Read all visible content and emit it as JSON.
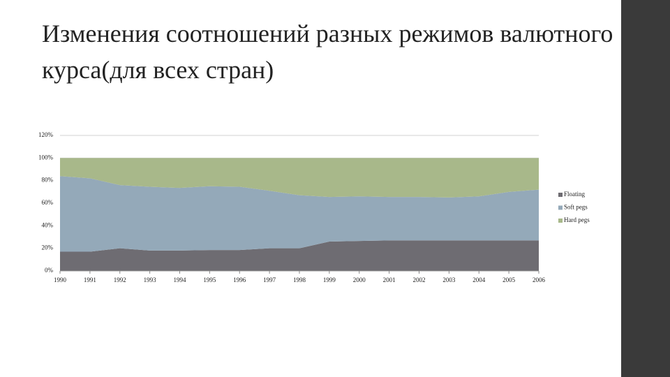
{
  "chart_data": {
    "type": "stacked_area",
    "title": "Изменения соотношений разных режимов валютного курса(для всех стран)",
    "categories": [
      "1990",
      "1991",
      "1992",
      "1993",
      "1994",
      "1995",
      "1996",
      "1997",
      "1998",
      "1999",
      "2000",
      "2001",
      "2002",
      "2003",
      "2004",
      "2005",
      "2006"
    ],
    "series": [
      {
        "name": "Floating",
        "color": "#6e6c72",
        "values": [
          17,
          17,
          20,
          18,
          18,
          18.5,
          18.5,
          20,
          20,
          26,
          26.5,
          27,
          27,
          27,
          27,
          27,
          27
        ]
      },
      {
        "name": "Soft pegs",
        "color": "#94a9b9",
        "values": [
          67,
          65,
          56,
          56.5,
          55.5,
          56.5,
          56,
          51,
          47,
          39.5,
          39.5,
          38.5,
          38.5,
          38,
          39,
          43,
          45
        ]
      },
      {
        "name": "Hard pegs",
        "color": "#a8b88a",
        "values": [
          16,
          18,
          24,
          25.5,
          26.5,
          25,
          25.5,
          29,
          33,
          34.5,
          34,
          34.5,
          34.5,
          35,
          34,
          30,
          28
        ]
      }
    ],
    "ylim": [
      0,
      120
    ],
    "yticks": [
      {
        "value": 0,
        "label": "0%"
      },
      {
        "value": 20,
        "label": "20%"
      },
      {
        "value": 40,
        "label": "40%"
      },
      {
        "value": 60,
        "label": "60%"
      },
      {
        "value": 80,
        "label": "80%"
      },
      {
        "value": 100,
        "label": "100%"
      },
      {
        "value": 120,
        "label": "120%"
      }
    ],
    "grid": true,
    "legend": "right"
  }
}
